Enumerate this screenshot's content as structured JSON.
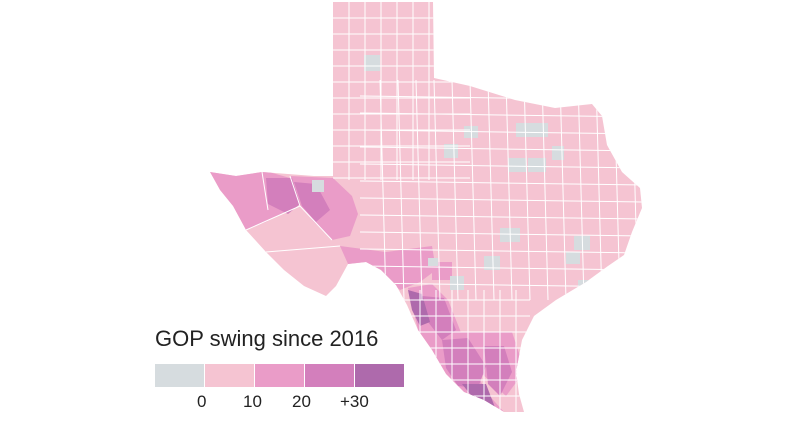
{
  "legend": {
    "title": "GOP swing since 2016",
    "bins": [
      {
        "label": "0",
        "color": "#d6dcdf"
      },
      {
        "label": "10",
        "color": "#f5c4d2"
      },
      {
        "label": "20",
        "color": "#ea9cc8"
      },
      {
        "label": "+30",
        "color": "#d37fbc"
      },
      {
        "label": "",
        "color": "#ae6aac"
      }
    ]
  },
  "colors": {
    "county_line": "#ffffff",
    "no_swing": "#d6dcdf",
    "swing_0_10": "#f5c4d2",
    "swing_10_20": "#ea9cc8",
    "swing_20_30": "#d37fbc",
    "swing_30_plus": "#ae6aac"
  }
}
